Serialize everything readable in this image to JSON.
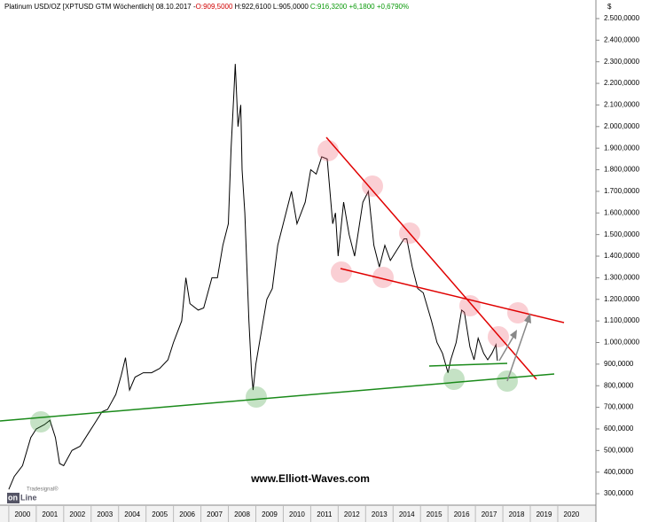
{
  "chart_data": {
    "type": "line",
    "title": "Platinum USD/OZ [XPTUSD GTM  Wöchentlich] 08.10.2017 -",
    "quote": [
      "O:909,5000",
      "H:922,6100",
      "L:905,0000",
      "C:916,3200 +6,1800 +0,6790%"
    ],
    "unit": "$",
    "watermark": "www.Elliott-Waves.com",
    "logo": [
      "on",
      "Line",
      "Tradesignal®"
    ],
    "color": "#000000",
    "x": [
      2000.0,
      2000.2,
      2000.5,
      2000.8,
      2001.0,
      2001.3,
      2001.5,
      2001.7,
      2001.85,
      2002.0,
      2002.3,
      2002.6,
      2002.9,
      2003.1,
      2003.4,
      2003.6,
      2003.9,
      2004.1,
      2004.25,
      2004.4,
      2004.6,
      2004.9,
      2005.2,
      2005.5,
      2005.8,
      2006.0,
      2006.3,
      2006.45,
      2006.6,
      2006.9,
      2007.1,
      2007.4,
      2007.6,
      2007.8,
      2008.0,
      2008.1,
      2008.2,
      2008.25,
      2008.35,
      2008.45,
      2008.5,
      2008.6,
      2008.75,
      2008.85,
      2008.9,
      2009.0,
      2009.2,
      2009.4,
      2009.6,
      2009.8,
      2010.0,
      2010.3,
      2010.5,
      2010.8,
      2011.0,
      2011.2,
      2011.4,
      2011.6,
      2011.8,
      2011.9,
      2012.0,
      2012.2,
      2012.4,
      2012.6,
      2012.9,
      2013.1,
      2013.3,
      2013.5,
      2013.7,
      2013.9,
      2014.1,
      2014.4,
      2014.5,
      2014.7,
      2014.9,
      2015.1,
      2015.4,
      2015.6,
      2015.8,
      2016.0,
      2016.1,
      2016.3,
      2016.5,
      2016.6,
      2016.8,
      2016.95,
      2017.1,
      2017.3,
      2017.45,
      2017.6,
      2017.75,
      2017.8
    ],
    "values": [
      320,
      380,
      430,
      560,
      600,
      620,
      640,
      560,
      440,
      430,
      500,
      520,
      580,
      620,
      680,
      690,
      760,
      850,
      930,
      780,
      840,
      860,
      860,
      880,
      920,
      1000,
      1100,
      1300,
      1180,
      1150,
      1160,
      1300,
      1300,
      1450,
      1550,
      1900,
      2150,
      2290,
      2000,
      2100,
      1800,
      1600,
      1100,
      850,
      780,
      900,
      1050,
      1200,
      1250,
      1450,
      1550,
      1700,
      1550,
      1650,
      1800,
      1780,
      1860,
      1850,
      1550,
      1600,
      1400,
      1650,
      1500,
      1400,
      1650,
      1700,
      1450,
      1350,
      1450,
      1380,
      1420,
      1480,
      1480,
      1350,
      1250,
      1230,
      1100,
      1000,
      950,
      860,
      920,
      1000,
      1150,
      1140,
      980,
      920,
      1020,
      950,
      920,
      950,
      990,
      916
    ],
    "xlim": [
      1999.68,
      2021.39
    ],
    "ylim": [
      247,
      2586
    ],
    "xticks": [
      2000,
      2001,
      2002,
      2003,
      2004,
      2005,
      2006,
      2007,
      2008,
      2009,
      2010,
      2011,
      2012,
      2013,
      2014,
      2015,
      2016,
      2017,
      2018,
      2019,
      2020
    ],
    "yticks": [
      {
        "value": 300,
        "label": "300,0000"
      },
      {
        "value": 400,
        "label": "400,0000"
      },
      {
        "value": 500,
        "label": "500,0000"
      },
      {
        "value": 600,
        "label": "600,0000"
      },
      {
        "value": 700,
        "label": "700,0000"
      },
      {
        "value": 800,
        "label": "800,0000"
      },
      {
        "value": 900,
        "label": "900,0000"
      },
      {
        "value": 1000,
        "label": "1.000,0000"
      },
      {
        "value": 1100,
        "label": "1.100,0000"
      },
      {
        "value": 1200,
        "label": "1.200,0000"
      },
      {
        "value": 1300,
        "label": "1.300,0000"
      },
      {
        "value": 1400,
        "label": "1.400,0000"
      },
      {
        "value": 1500,
        "label": "1.500,0000"
      },
      {
        "value": 1600,
        "label": "1.600,0000"
      },
      {
        "value": 1700,
        "label": "1.700,0000"
      },
      {
        "value": 1800,
        "label": "1.800,0000"
      },
      {
        "value": 1900,
        "label": "1.900,0000"
      },
      {
        "value": 2000,
        "label": "2.000,0000"
      },
      {
        "value": 2100,
        "label": "2.100,0000"
      },
      {
        "value": 2200,
        "label": "2.200,0000"
      },
      {
        "value": 2300,
        "label": "2.300,0000"
      },
      {
        "value": 2400,
        "label": "2.400,0000"
      },
      {
        "value": 2500,
        "label": "2.500,0000"
      }
    ]
  }
}
